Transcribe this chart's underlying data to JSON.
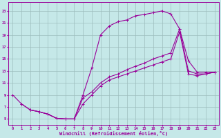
{
  "xlabel": "Windchill (Refroidissement éolien,°C)",
  "bg_color": "#c5e8e8",
  "line_color": "#990099",
  "grid_color": "#9dbdbd",
  "x_ticks": [
    0,
    1,
    2,
    3,
    4,
    5,
    6,
    7,
    8,
    9,
    10,
    11,
    12,
    13,
    14,
    15,
    16,
    17,
    18,
    19,
    20,
    21,
    22,
    23
  ],
  "y_ticks": [
    5,
    7,
    9,
    11,
    13,
    15,
    17,
    19,
    21,
    23
  ],
  "xlim": [
    -0.5,
    23.5
  ],
  "ylim": [
    4.0,
    24.5
  ],
  "curve1_x": [
    0,
    1,
    2,
    3,
    4,
    5,
    6,
    7,
    8,
    9,
    10,
    11,
    12,
    13,
    14,
    15,
    16,
    17,
    18,
    19,
    20,
    21,
    22,
    23
  ],
  "curve1_y": [
    9,
    7.5,
    6.5,
    6.2,
    5.8,
    5.1,
    5.0,
    5.0,
    9.0,
    13.5,
    19.0,
    20.5,
    21.2,
    21.5,
    22.2,
    22.4,
    22.7,
    23.0,
    22.5,
    20.0,
    14.7,
    12.8,
    12.8,
    12.8
  ],
  "curve2_x": [
    1,
    2,
    3,
    4,
    5,
    6,
    7,
    8,
    9,
    10,
    11,
    12,
    13,
    14,
    15,
    16,
    17,
    18,
    19,
    20,
    21,
    22,
    23
  ],
  "curve2_y": [
    7.5,
    6.5,
    6.2,
    5.8,
    5.1,
    5.0,
    5.0,
    8.5,
    9.5,
    11.0,
    12.0,
    12.5,
    13.2,
    13.8,
    14.3,
    15.0,
    15.5,
    16.0,
    20.0,
    13.0,
    12.5,
    12.5,
    12.8
  ],
  "curve3_x": [
    2,
    3,
    4,
    5,
    6,
    7,
    8,
    9,
    10,
    11,
    12,
    13,
    14,
    15,
    16,
    17,
    18,
    19,
    20,
    21,
    22,
    23
  ],
  "curve3_y": [
    6.5,
    6.2,
    5.8,
    5.1,
    5.0,
    5.0,
    7.5,
    9.0,
    10.5,
    11.5,
    12.0,
    12.5,
    13.0,
    13.5,
    14.0,
    14.5,
    15.0,
    19.5,
    12.5,
    12.2,
    12.5,
    12.8
  ]
}
